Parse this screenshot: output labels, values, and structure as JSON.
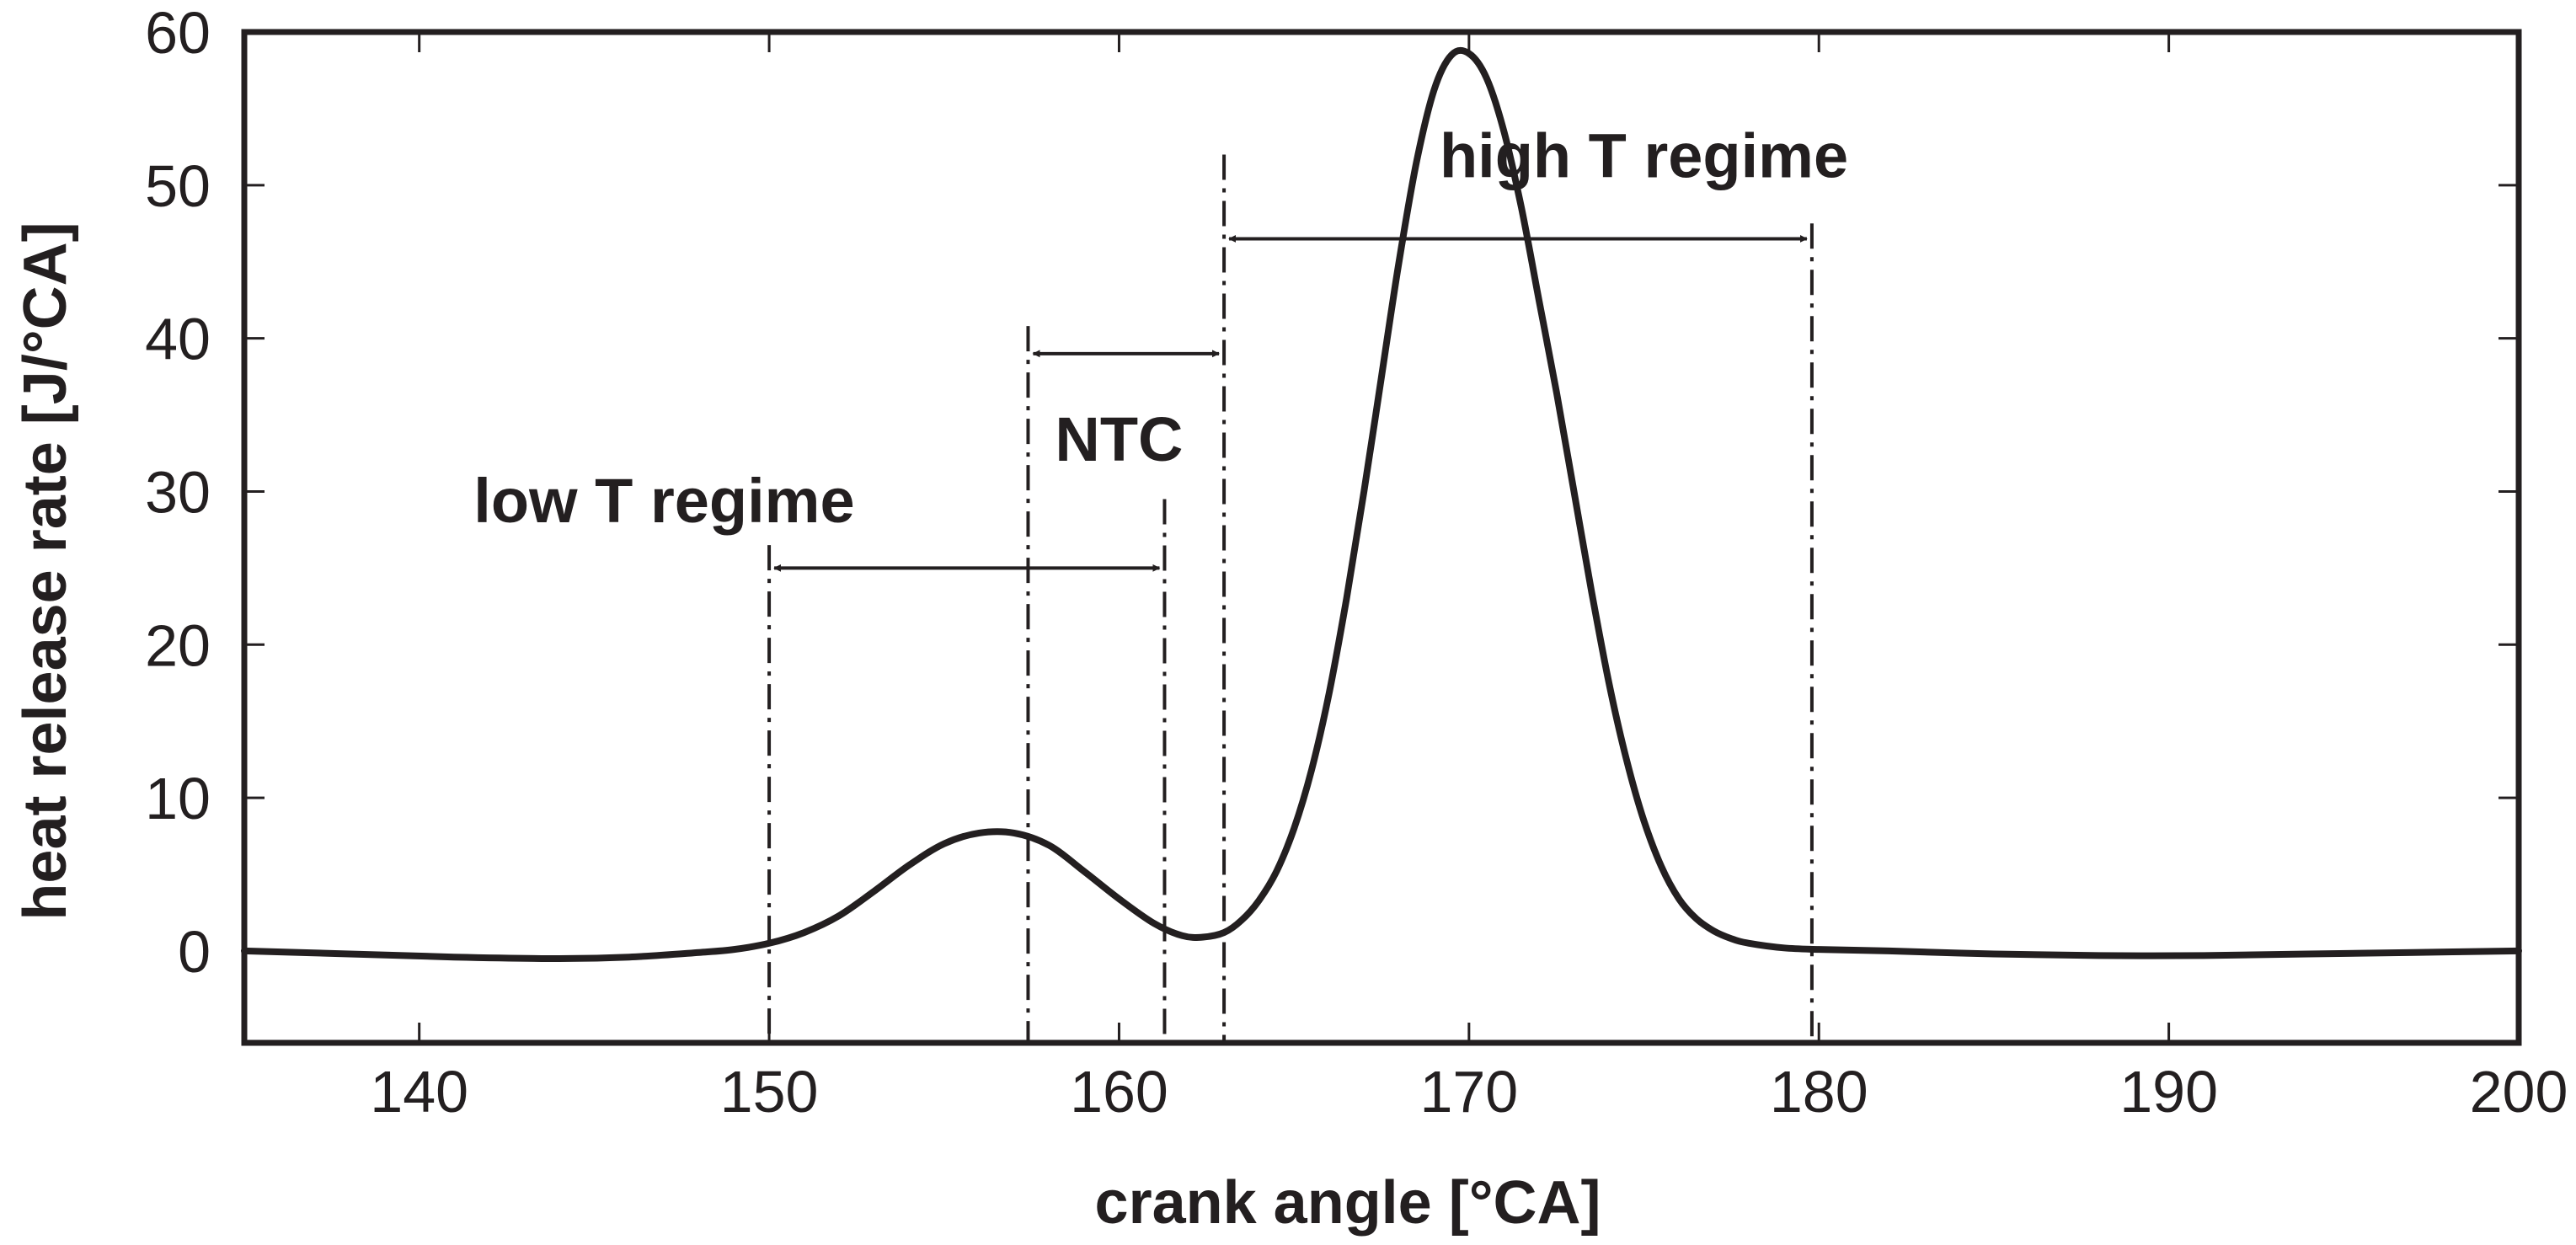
{
  "chart_data": {
    "type": "line",
    "title": "",
    "xlabel": "crank angle  [°CA]",
    "ylabel": "heat release rate  [J/°CA]",
    "xlim": [
      135,
      200
    ],
    "ylim": [
      -6,
      60
    ],
    "x_ticks": [
      140,
      150,
      160,
      170,
      180,
      190,
      200
    ],
    "y_ticks": [
      0,
      10,
      20,
      30,
      40,
      50,
      60
    ],
    "grid": false,
    "legend": "none",
    "colors": {
      "line": "#231f20",
      "axes": "#231f20"
    },
    "series": [
      {
        "x": [
          135,
          138,
          141,
          144,
          146,
          148,
          149,
          150,
          151,
          152,
          153,
          154,
          155,
          156,
          157,
          158,
          159,
          160,
          161,
          161.8,
          162.4,
          163,
          163.5,
          164,
          164.5,
          165,
          165.5,
          166,
          166.5,
          167,
          167.5,
          168,
          168.5,
          169,
          169.5,
          170,
          170.5,
          171,
          171.5,
          172,
          172.5,
          173,
          173.5,
          174,
          174.5,
          175,
          175.5,
          176,
          176.5,
          177,
          177.5,
          178,
          179,
          180,
          182,
          185,
          188,
          191,
          194,
          197,
          200
        ],
        "y": [
          0.0,
          -0.2,
          -0.4,
          -0.5,
          -0.4,
          -0.1,
          0.1,
          0.5,
          1.2,
          2.3,
          3.9,
          5.6,
          7.0,
          7.7,
          7.7,
          6.9,
          5.2,
          3.4,
          1.8,
          1.0,
          0.9,
          1.2,
          2.0,
          3.3,
          5.2,
          8.0,
          11.8,
          16.8,
          23.0,
          30.0,
          37.5,
          45.0,
          51.5,
          56.2,
          58.5,
          58.6,
          57.0,
          53.5,
          48.5,
          42.5,
          36.5,
          30.0,
          23.5,
          17.5,
          12.5,
          8.5,
          5.5,
          3.4,
          2.1,
          1.3,
          0.8,
          0.5,
          0.2,
          0.1,
          0.0,
          -0.2,
          -0.3,
          -0.3,
          -0.2,
          -0.1,
          0.0
        ]
      }
    ],
    "markers": [
      {
        "x": 150.0,
        "y_top": 26.5
      },
      {
        "x": 157.4,
        "y_top": 40.8
      },
      {
        "x": 161.3,
        "y_top": 29.5
      },
      {
        "x": 163.0,
        "y_top": 52.0
      },
      {
        "x": 179.8,
        "y_top": 47.5
      }
    ],
    "ranges": [
      {
        "label": "low T regime",
        "x_start": 150.0,
        "x_end": 161.3,
        "y": 25.0
      },
      {
        "label": "NTC",
        "x_start": 157.4,
        "x_end": 163.0,
        "y": 39.0
      },
      {
        "label": "high T regime",
        "x_start": 163.0,
        "x_end": 179.8,
        "y": 46.5
      }
    ],
    "annotations": [
      {
        "text": "low T regime",
        "x": 147.0,
        "y": 28.0
      },
      {
        "text": "NTC",
        "x": 160.0,
        "y": 32.0
      },
      {
        "text": "high T regime",
        "x": 175.0,
        "y": 50.5
      }
    ]
  }
}
